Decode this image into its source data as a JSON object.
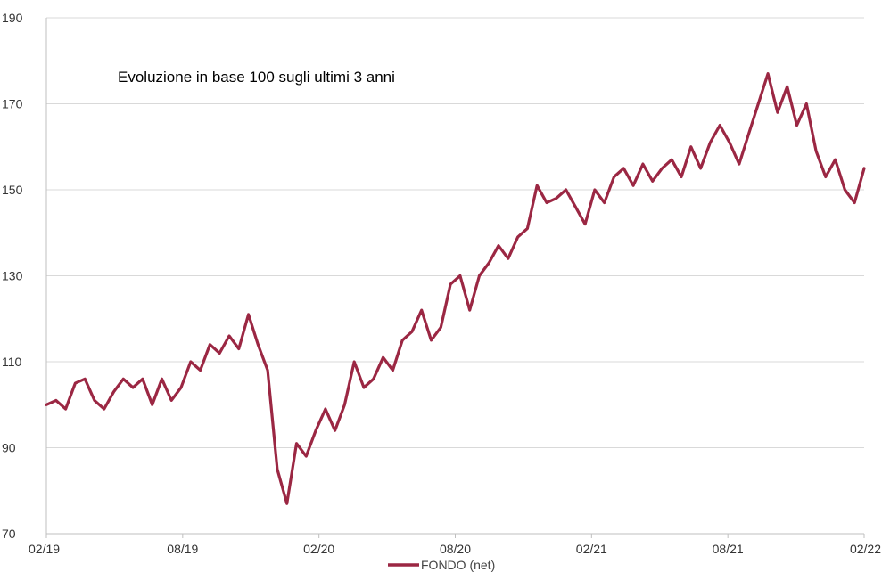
{
  "colors": {
    "series": "#9b2743",
    "grid": "#d9d9d9",
    "axis": "#bfbfbf",
    "background": "#ffffff"
  },
  "chart_data": {
    "type": "line",
    "title": "Evoluzione in base 100 sugli ultimi 3 anni",
    "xlabel": "",
    "ylabel": "",
    "x_ticks": [
      "02/19",
      "08/19",
      "02/20",
      "08/20",
      "02/21",
      "08/21",
      "02/22"
    ],
    "y_ticks": [
      70,
      90,
      110,
      130,
      150,
      170,
      190
    ],
    "ylim": [
      70,
      190
    ],
    "grid": "horizontal",
    "legend_position": "bottom-center",
    "series": [
      {
        "name": "FONDO (net)",
        "x": [
          "02/19",
          "03/19",
          "04/19",
          "04/19",
          "05/19",
          "05/19",
          "06/19",
          "06/19",
          "07/19",
          "07/19",
          "08/19",
          "08/19",
          "09/19",
          "09/19",
          "10/19",
          "11/19",
          "11/19",
          "12/19",
          "12/19",
          "01/20",
          "01/20",
          "02/20",
          "02/20",
          "02/20",
          "03/20",
          "03/20",
          "03/20",
          "03/20",
          "03/20",
          "03/20",
          "04/20",
          "04/20",
          "04/20",
          "05/20",
          "05/20",
          "05/20",
          "06/20",
          "06/20",
          "06/20",
          "07/20",
          "07/20",
          "07/20",
          "08/20",
          "08/20",
          "09/20",
          "09/20",
          "09/20",
          "10/20",
          "10/20",
          "11/20",
          "11/20",
          "11/20",
          "12/20",
          "12/20",
          "12/20",
          "01/21",
          "01/21",
          "02/21",
          "02/21",
          "03/21",
          "03/21",
          "04/21",
          "04/21",
          "05/21",
          "05/21",
          "06/21",
          "06/21",
          "07/21",
          "07/21",
          "08/21",
          "08/21",
          "09/21",
          "09/21",
          "10/21",
          "10/21",
          "11/21",
          "11/21",
          "11/21",
          "12/21",
          "12/21",
          "12/21",
          "01/22",
          "01/22",
          "01/22",
          "02/22",
          "02/22"
        ],
        "values": [
          100,
          101,
          99,
          105,
          106,
          101,
          99,
          103,
          106,
          104,
          106,
          100,
          106,
          101,
          104,
          110,
          108,
          114,
          112,
          116,
          113,
          121,
          114,
          108,
          85,
          77,
          91,
          88,
          94,
          99,
          94,
          100,
          110,
          104,
          106,
          111,
          108,
          115,
          117,
          122,
          115,
          118,
          128,
          130,
          122,
          130,
          133,
          137,
          134,
          139,
          141,
          151,
          147,
          148,
          150,
          146,
          142,
          150,
          147,
          153,
          155,
          151,
          156,
          152,
          155,
          157,
          153,
          160,
          155,
          161,
          165,
          161,
          156,
          163,
          170,
          177,
          168,
          174,
          165,
          170,
          159,
          153,
          157,
          150,
          147,
          155
        ]
      }
    ]
  },
  "legend": {
    "label": "FONDO (net)"
  }
}
